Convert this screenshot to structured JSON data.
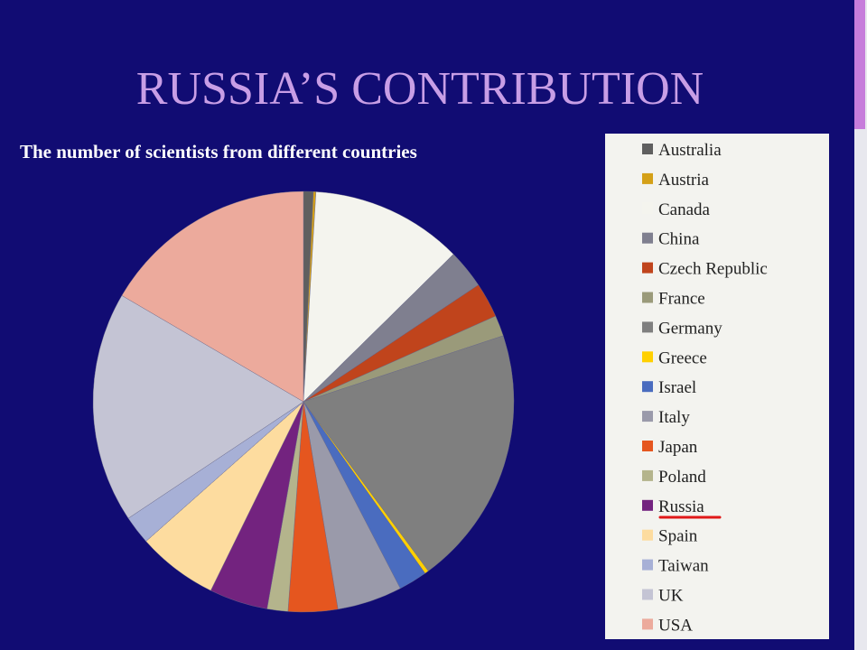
{
  "slide": {
    "title": "RUSSIA’S CONTRIBUTION"
  },
  "chart_data": {
    "type": "pie",
    "title": "The number of scientists from different countries",
    "categories": [
      "Australia",
      "Austria",
      "Canada",
      "China",
      "Czech Republic",
      "France",
      "Germany",
      "Greece",
      "Israel",
      "Italy",
      "Japan",
      "Poland",
      "Russia",
      "Spain",
      "Taiwan",
      "UK",
      "USA"
    ],
    "values": [
      0.75,
      0.2,
      11.7,
      3,
      2.7,
      1.6,
      20,
      0.3,
      2.2,
      5,
      3.8,
      1.6,
      4.5,
      6.2,
      2.2,
      17.8,
      16.6
    ],
    "colors": [
      "#5f5f5f",
      "#d4a017",
      "#f4f4ee",
      "#7f7f8f",
      "#c0441c",
      "#9a9a7a",
      "#7f7f7f",
      "#ffd000",
      "#4a6cbf",
      "#9a9aaa",
      "#e5561f",
      "#b4b48c",
      "#73237f",
      "#fddc9f",
      "#a7b0d6",
      "#c4c4d4",
      "#ecaa9c"
    ],
    "legend": "right"
  }
}
